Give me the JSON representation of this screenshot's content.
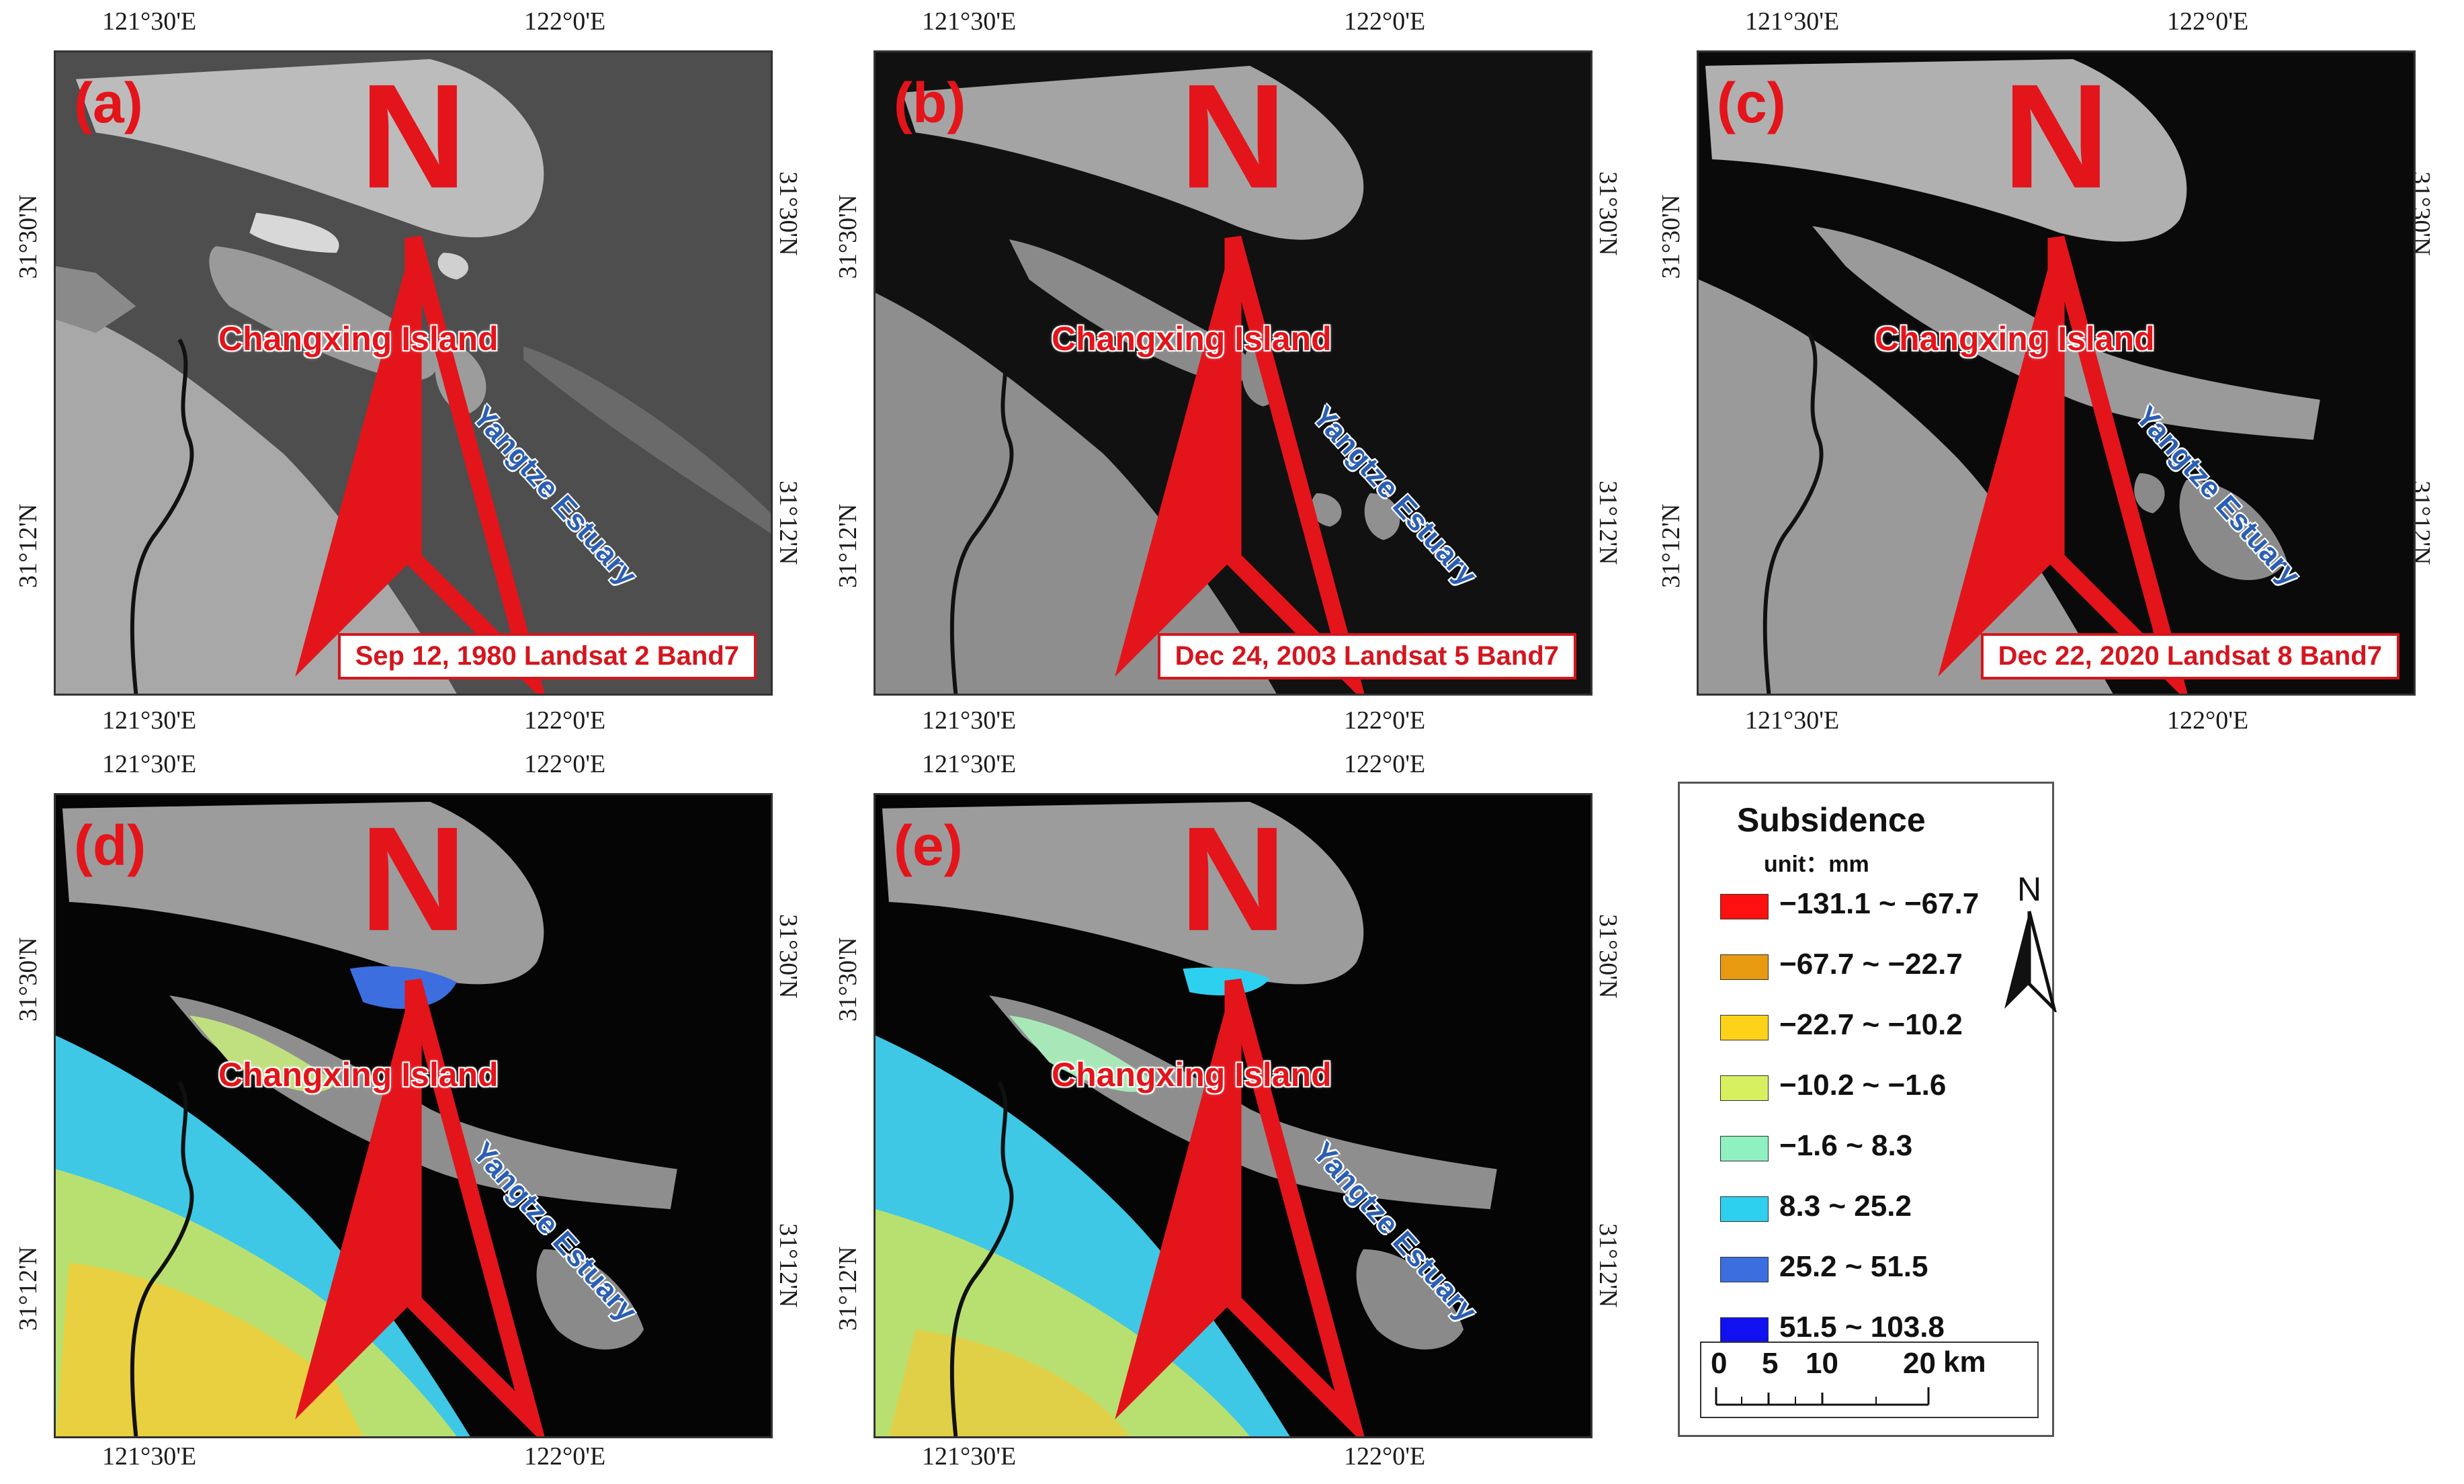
{
  "coordinates": {
    "lon_left": "121°30'E",
    "lon_right": "122°0'E",
    "lat_top": "31°30'N",
    "lat_bottom": "31°12'N"
  },
  "map_labels": {
    "island": "Changxing Island",
    "estuary": "Yangtze Estuary",
    "north": "N"
  },
  "panels": [
    {
      "label": "(a)",
      "caption": "Sep 12, 1980 Landsat 2 Band7"
    },
    {
      "label": "(b)",
      "caption": "Dec 24, 2003 Landsat 5 Band7"
    },
    {
      "label": "(c)",
      "caption": "Dec 22, 2020 Landsat 8 Band7"
    },
    {
      "label": "(d)",
      "caption": ""
    },
    {
      "label": "(e)",
      "caption": ""
    }
  ],
  "legend": {
    "title": "Subsidence",
    "unit": "unit：mm",
    "classes": [
      {
        "range": "−131.1 ~ −67.7",
        "color": "#ff1010"
      },
      {
        "range": "−67.7 ~ −22.7",
        "color": "#e89a10"
      },
      {
        "range": "−22.7 ~ −10.2",
        "color": "#ffd21a"
      },
      {
        "range": "−10.2 ~ −1.6",
        "color": "#d6f060"
      },
      {
        "range": "−1.6 ~ 8.3",
        "color": "#8ff0c0"
      },
      {
        "range": "8.3 ~ 25.2",
        "color": "#2ed0f0"
      },
      {
        "range": "25.2 ~ 51.5",
        "color": "#3c6ee0"
      },
      {
        "range": "51.5 ~ 103.8",
        "color": "#1010f0"
      }
    ],
    "north": "N",
    "scale": {
      "ticks": [
        "0",
        "5",
        "10",
        "20"
      ],
      "unit": "km"
    }
  },
  "colors": {
    "label_red": "#e4141b",
    "estuary_blue": "#2b5fb3",
    "frame": "#333333"
  }
}
